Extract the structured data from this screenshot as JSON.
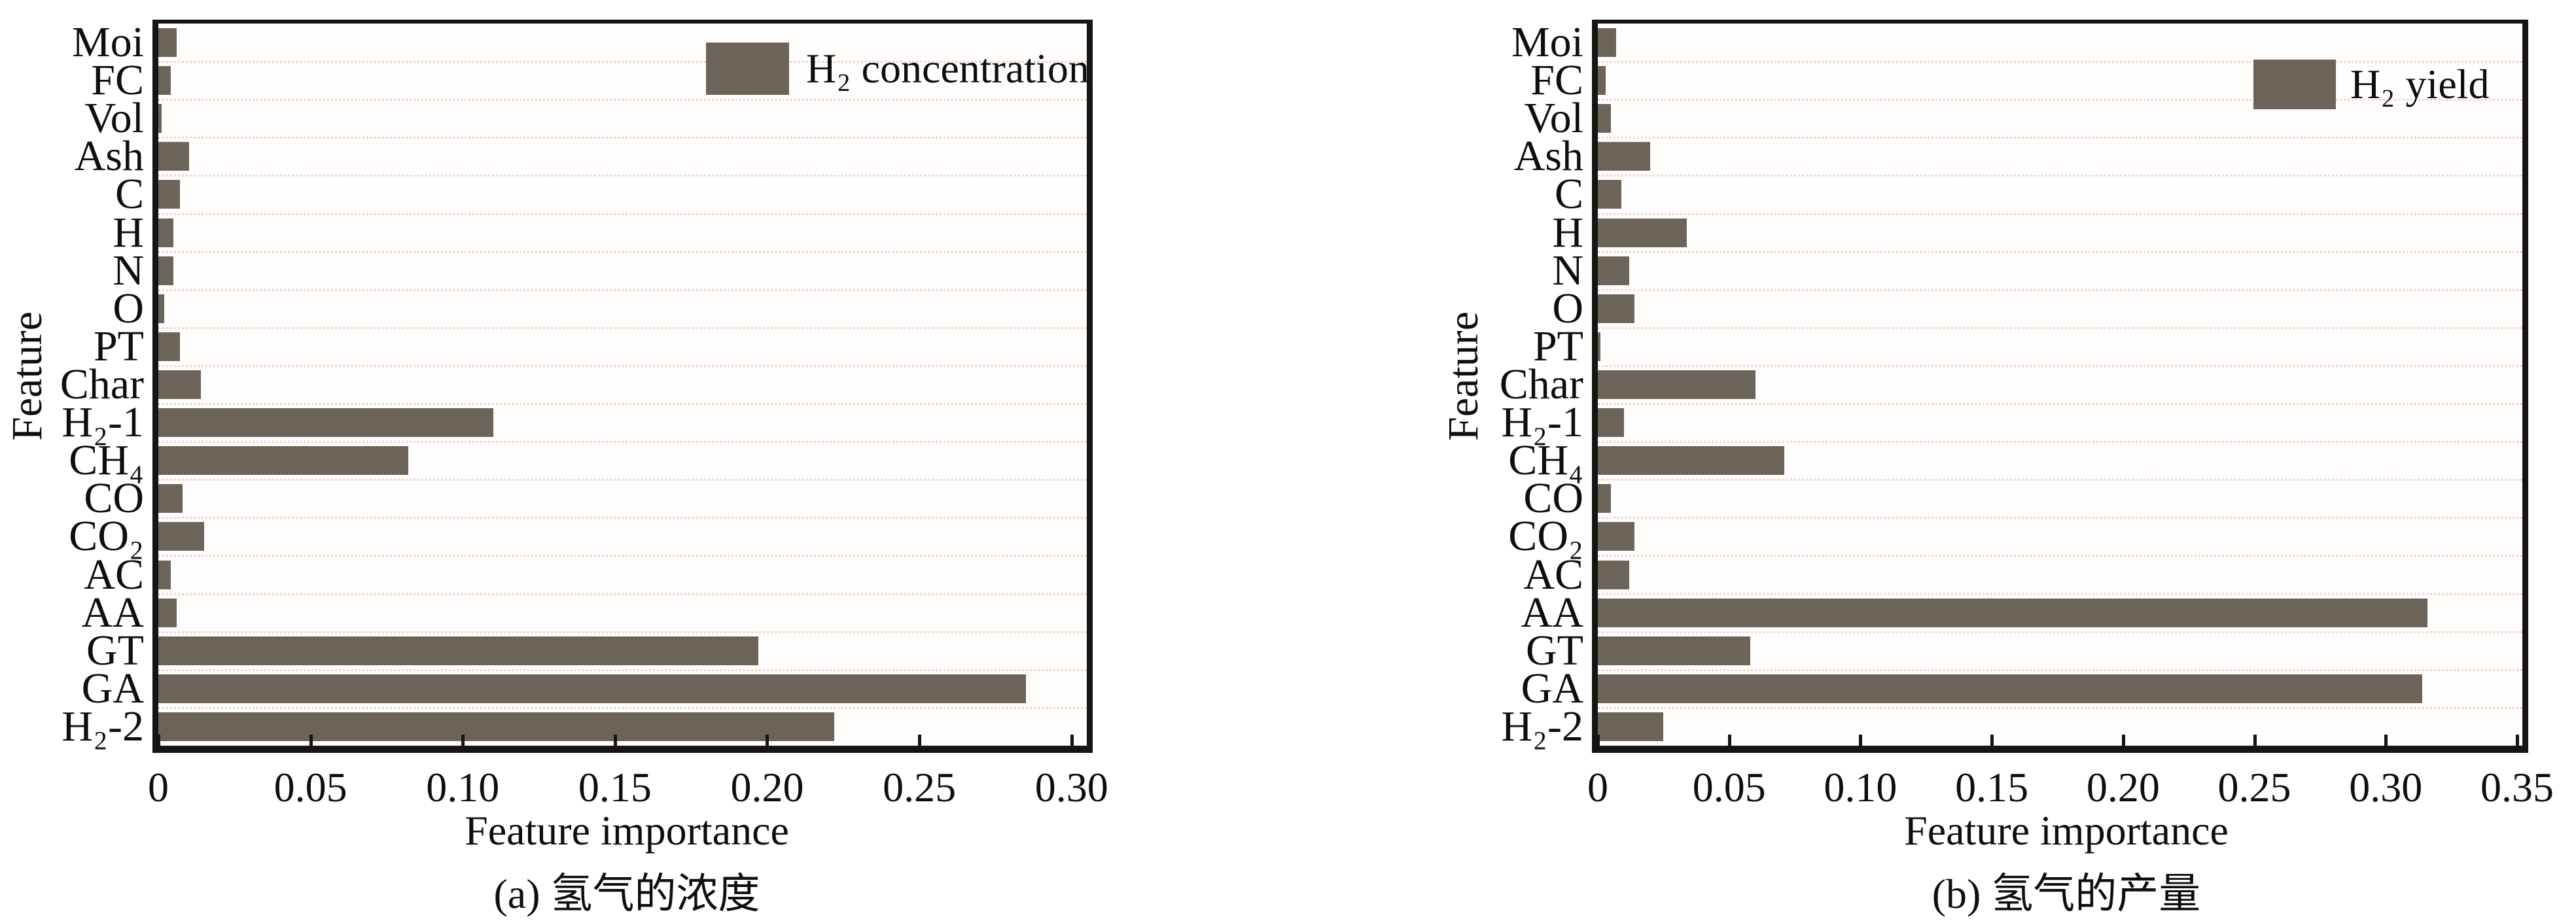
{
  "figure": {
    "bar_color": "#6d6459",
    "grid_color": "#e8d7cf",
    "axis_color": "#171513",
    "background": "#ffffff"
  },
  "chart_data": [
    {
      "type": "bar",
      "orientation": "horizontal",
      "caption": "(a) 氢气的浓度",
      "legend": "H₂ concentration",
      "xlabel": "Feature importance",
      "ylabel": "Feature",
      "xlim": [
        0,
        0.305
      ],
      "grid": "horizontal-dotted",
      "legend_position": "upper-right-inside",
      "xticks": [
        0,
        0.05,
        0.1,
        0.15,
        0.2,
        0.25,
        0.3
      ],
      "xtick_labels": [
        "0",
        "0.05",
        "0.10",
        "0.15",
        "0.20",
        "0.25",
        "0.30"
      ],
      "categories": [
        "Moi",
        "FC",
        "Vol",
        "Ash",
        "C",
        "H",
        "N",
        "O",
        "PT",
        "Char",
        "H₂-1",
        "CH₄",
        "CO",
        "CO₂",
        "AC",
        "AA",
        "GT",
        "GA",
        "H₂-2"
      ],
      "values": [
        0.006,
        0.004,
        0.001,
        0.01,
        0.007,
        0.005,
        0.005,
        0.002,
        0.007,
        0.014,
        0.11,
        0.082,
        0.008,
        0.015,
        0.004,
        0.006,
        0.197,
        0.285,
        0.222
      ]
    },
    {
      "type": "bar",
      "orientation": "horizontal",
      "caption": "(b) 氢气的产量",
      "legend": "H₂ yield",
      "xlabel": "Feature importance",
      "ylabel": "Feature",
      "xlim": [
        0,
        0.352
      ],
      "grid": "horizontal-dotted",
      "legend_position": "upper-right-inside",
      "xticks": [
        0,
        0.05,
        0.1,
        0.15,
        0.2,
        0.25,
        0.3,
        0.35
      ],
      "xtick_labels": [
        "0",
        "0.05",
        "0.10",
        "0.15",
        "0.20",
        "0.25",
        "0.30",
        "0.35"
      ],
      "categories": [
        "Moi",
        "FC",
        "Vol",
        "Ash",
        "C",
        "H",
        "N",
        "O",
        "PT",
        "Char",
        "H₂-1",
        "CH₄",
        "CO",
        "CO₂",
        "AC",
        "AA",
        "GT",
        "GA",
        "H₂-2"
      ],
      "values": [
        0.007,
        0.003,
        0.005,
        0.02,
        0.009,
        0.034,
        0.012,
        0.014,
        0.001,
        0.06,
        0.01,
        0.071,
        0.005,
        0.014,
        0.012,
        0.316,
        0.058,
        0.314,
        0.025
      ]
    }
  ]
}
